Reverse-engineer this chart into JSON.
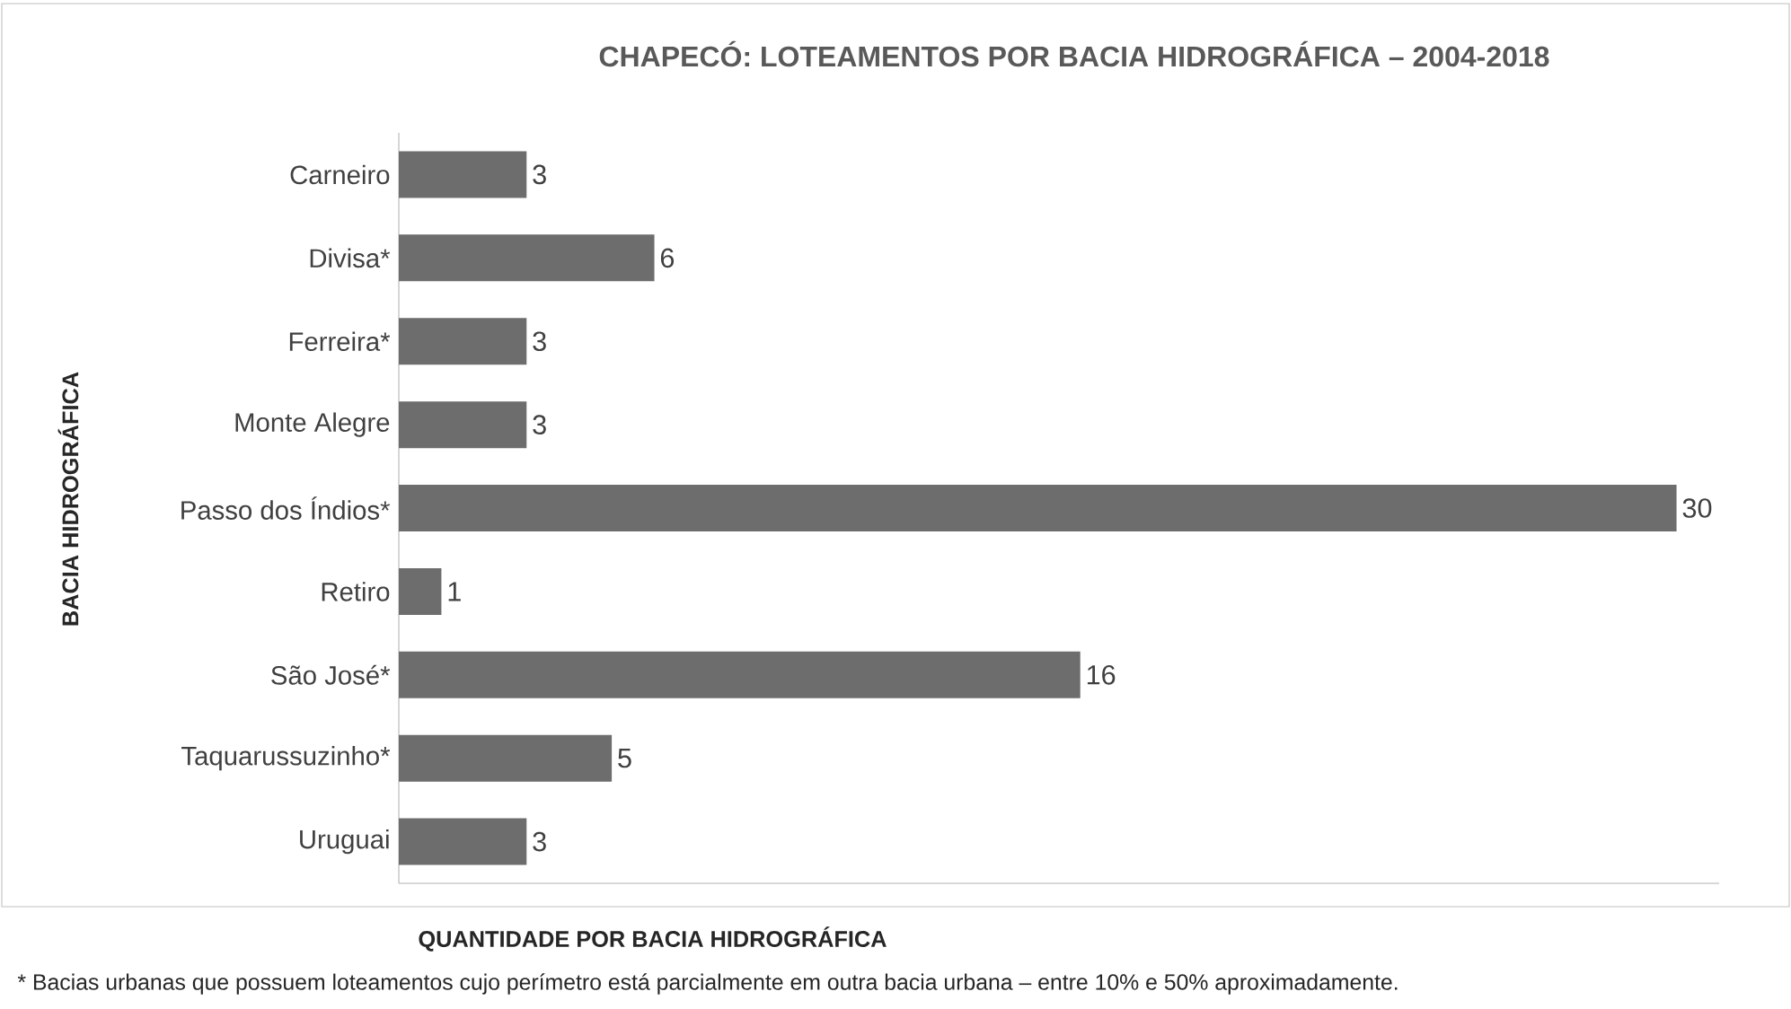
{
  "chart_data": {
    "type": "bar",
    "orientation": "horizontal",
    "title": "CHAPECÓ: LOTEAMENTOS POR BACIA HIDROGRÁFICA – 2004-2018",
    "xlabel": "QUANTIDADE POR BACIA HIDROGRÁFICA",
    "ylabel": "BACIA HIDROGRÁFICA",
    "categories": [
      "Carneiro",
      "Divisa*",
      "Ferreira*",
      "Monte Alegre",
      "Passo dos Índios*",
      "Retiro",
      "São José*",
      "Taquarussuzinho*",
      "Uruguai"
    ],
    "values": [
      3,
      6,
      3,
      3,
      30,
      1,
      16,
      5,
      3
    ],
    "value_labels": [
      "3",
      "6",
      "3",
      "3",
      "30",
      "1",
      "16",
      "5",
      "3"
    ],
    "color": "#6d6d6d",
    "tick_labels": "y",
    "xlim": [
      0,
      31
    ],
    "annotations": [
      "* Bacias urbanas que possuem loteamentos cujo perímetro está parcialmente em outra bacia urbana – entre 10% e 50% aproximadamente."
    ]
  }
}
